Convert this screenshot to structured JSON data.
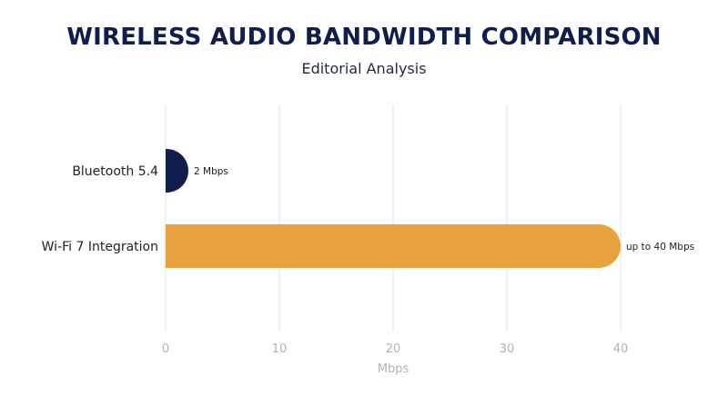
{
  "chart_data": {
    "type": "bar",
    "orientation": "horizontal",
    "title": "WIRELESS AUDIO BANDWIDTH COMPARISON",
    "subtitle": "Editorial Analysis",
    "xlabel": "Mbps",
    "ylabel": "",
    "xlim": [
      0,
      40
    ],
    "xticks": [
      0,
      10,
      20,
      30,
      40
    ],
    "grid": true,
    "categories": [
      "Bluetooth 5.4",
      "Wi-Fi 7 Integration"
    ],
    "values": [
      2,
      40
    ],
    "data_labels": [
      "2 Mbps",
      "up to 40 Mbps"
    ],
    "colors": [
      "#0f1e4a",
      "#e6a23c"
    ],
    "grid_color": "#e2e2e2"
  }
}
